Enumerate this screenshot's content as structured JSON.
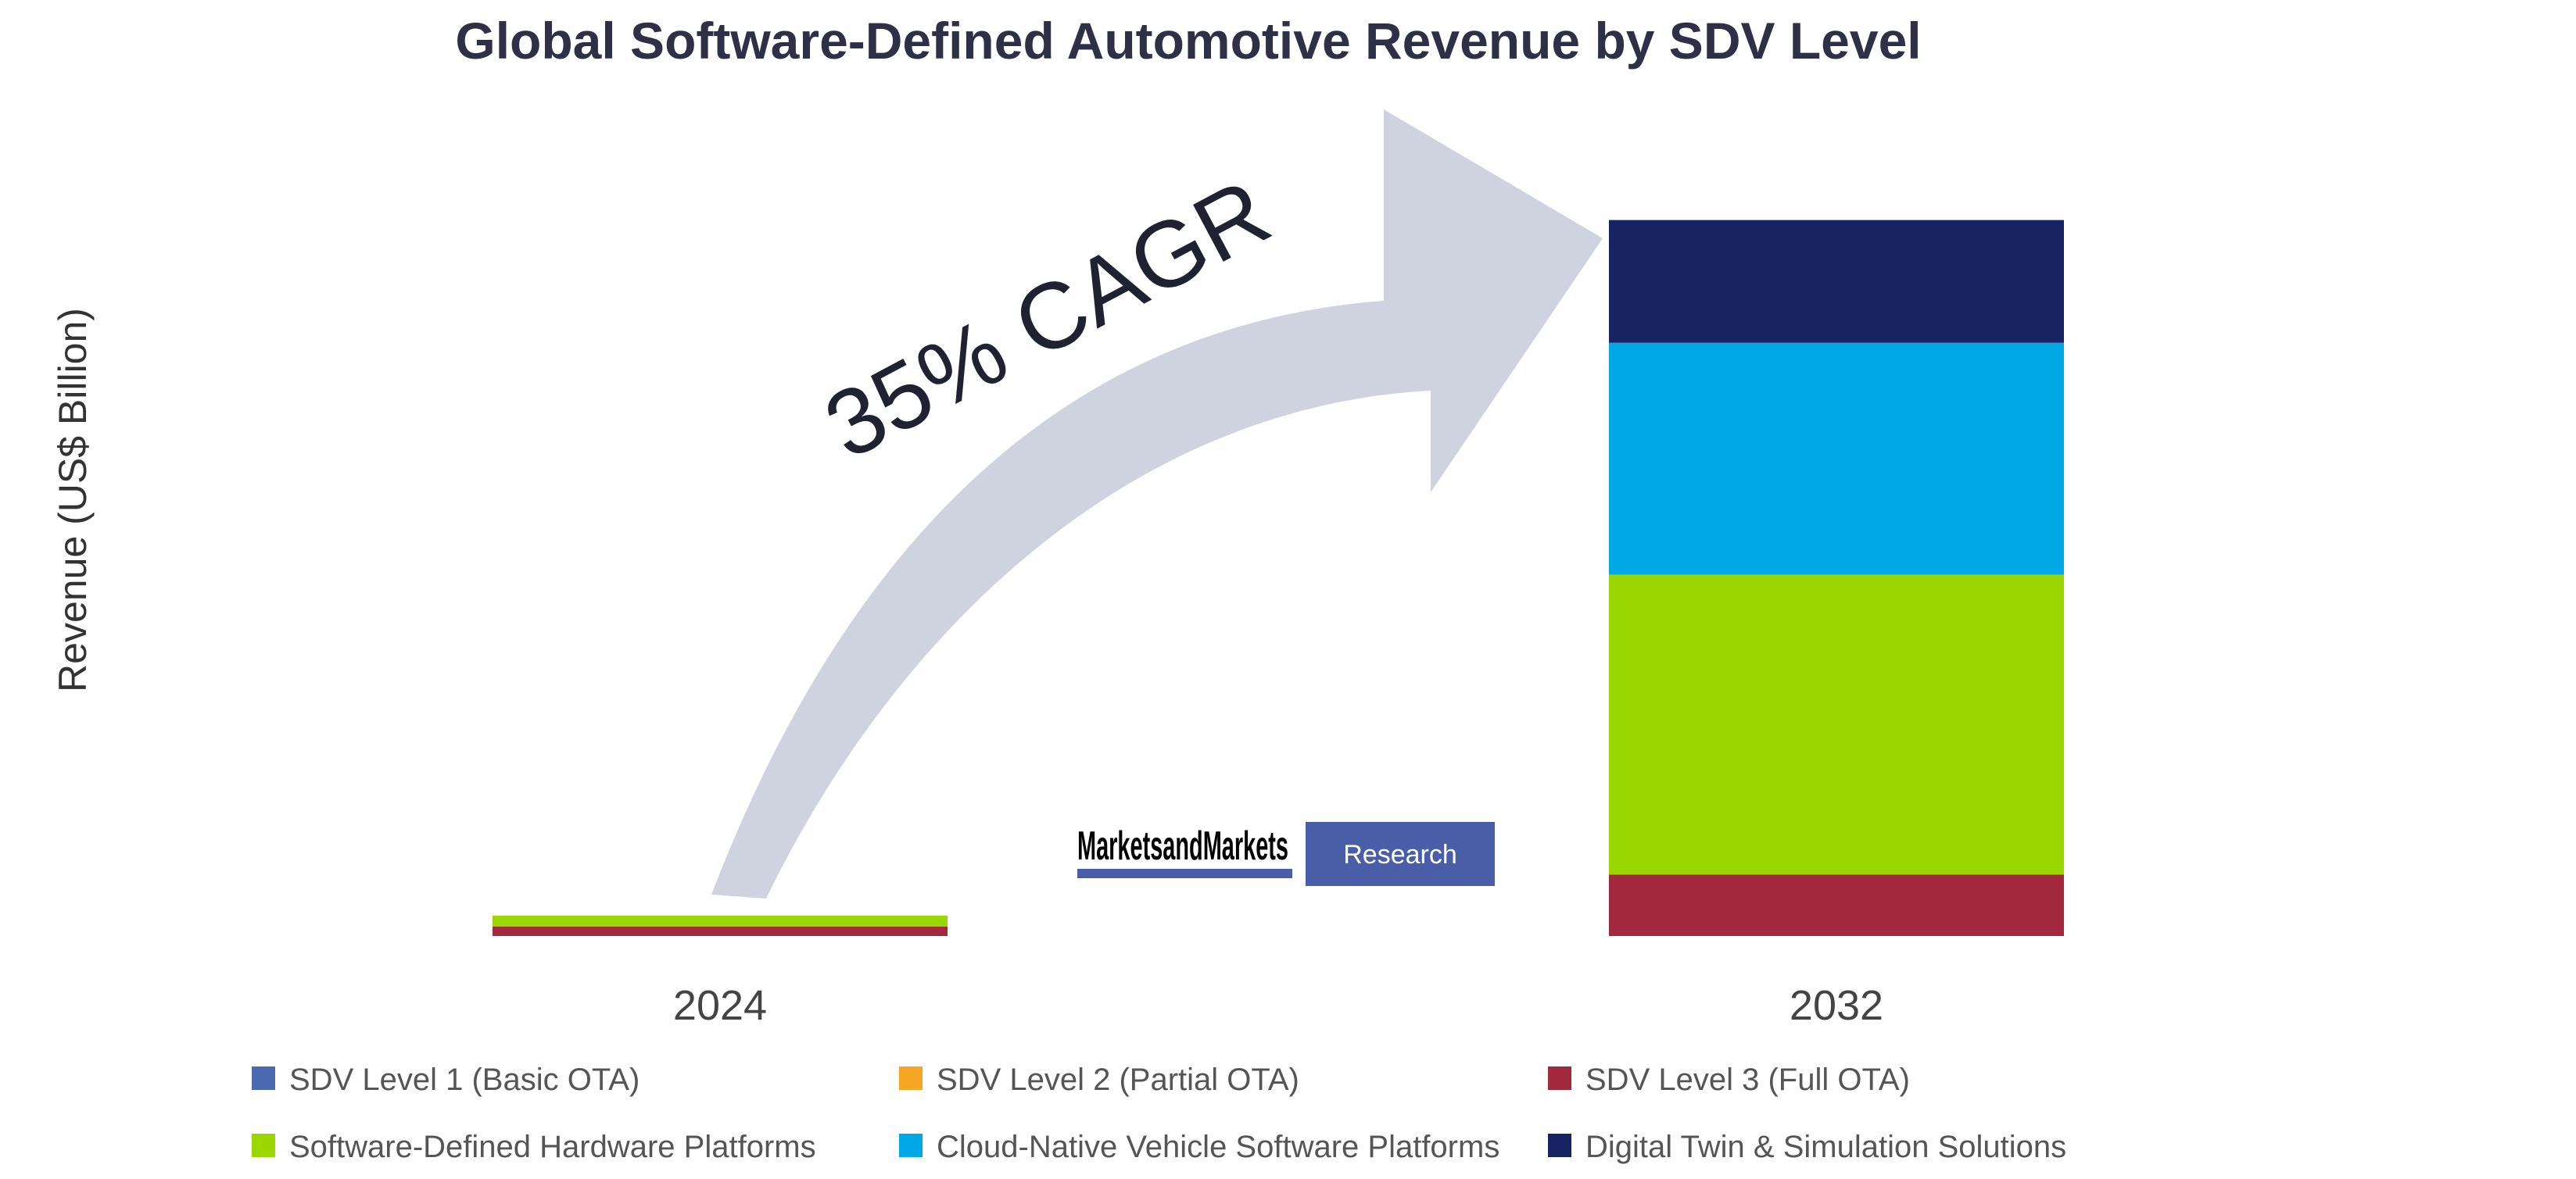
{
  "chart_data": {
    "type": "bar",
    "stacked": true,
    "title": "Global Software-Defined Automotive Revenue by SDV Level",
    "ylabel": "Revenue (US$ Billion)",
    "categories": [
      "2024",
      "2032"
    ],
    "series": [
      {
        "name": "SDV Level 1 (Basic OTA)",
        "color": "#4a69b0",
        "values": [
          0,
          0
        ]
      },
      {
        "name": "SDV Level 2 (Partial OTA)",
        "color": "#f5a623",
        "values": [
          0,
          0
        ]
      },
      {
        "name": "SDV Level 3 (Full OTA)",
        "color": "#a3293f",
        "values": [
          1.4,
          9
        ]
      },
      {
        "name": "Software-Defined Hardware Platforms",
        "color": "#9ad600",
        "values": [
          1.6,
          44
        ]
      },
      {
        "name": "Cloud-Native Vehicle Software Platforms",
        "color": "#00a9e6",
        "values": [
          0,
          34
        ]
      },
      {
        "name": "Digital Twin & Simulation Solutions",
        "color": "#172362",
        "values": [
          0,
          18
        ]
      }
    ],
    "ylim": [
      0,
      110
    ],
    "grid": false,
    "legend": "bottom",
    "annotation": "35% CAGR"
  },
  "colors": {
    "arrow": "#cfd3e0",
    "brand_button": "#4a5ea8",
    "brand_underline": "#4a5ea8"
  },
  "brand": {
    "name": "MarketsandMarkets",
    "button": "Research"
  }
}
